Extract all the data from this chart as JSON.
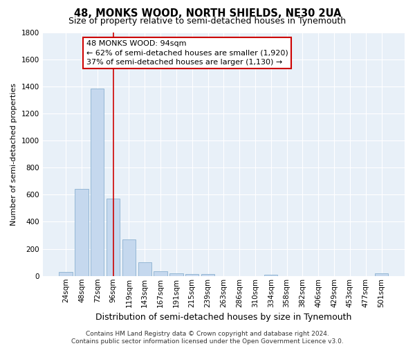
{
  "title": "48, MONKS WOOD, NORTH SHIELDS, NE30 2UA",
  "subtitle": "Size of property relative to semi-detached houses in Tynemouth",
  "xlabel": "Distribution of semi-detached houses by size in Tynemouth",
  "ylabel": "Number of semi-detached properties",
  "categories": [
    "24sqm",
    "48sqm",
    "72sqm",
    "96sqm",
    "119sqm",
    "143sqm",
    "167sqm",
    "191sqm",
    "215sqm",
    "239sqm",
    "263sqm",
    "286sqm",
    "310sqm",
    "334sqm",
    "358sqm",
    "382sqm",
    "406sqm",
    "429sqm",
    "453sqm",
    "477sqm",
    "501sqm"
  ],
  "values": [
    30,
    645,
    1385,
    570,
    270,
    100,
    33,
    18,
    15,
    15,
    0,
    0,
    0,
    10,
    0,
    0,
    0,
    0,
    0,
    0,
    18
  ],
  "bar_color": "#c5d8ee",
  "bar_edge_color": "#8ab0d0",
  "vline_x_index": 3,
  "vline_color": "#cc0000",
  "annotation_text": "48 MONKS WOOD: 94sqm\n← 62% of semi-detached houses are smaller (1,920)\n37% of semi-detached houses are larger (1,130) →",
  "annotation_box_color": "#cc0000",
  "ylim": [
    0,
    1800
  ],
  "yticks": [
    0,
    200,
    400,
    600,
    800,
    1000,
    1200,
    1400,
    1600,
    1800
  ],
  "background_color": "#e8f0f8",
  "grid_color": "#ffffff",
  "footer": "Contains HM Land Registry data © Crown copyright and database right 2024.\nContains public sector information licensed under the Open Government Licence v3.0.",
  "title_fontsize": 10.5,
  "subtitle_fontsize": 9,
  "xlabel_fontsize": 9,
  "ylabel_fontsize": 8,
  "tick_fontsize": 7.5,
  "annotation_fontsize": 8,
  "footer_fontsize": 6.5
}
